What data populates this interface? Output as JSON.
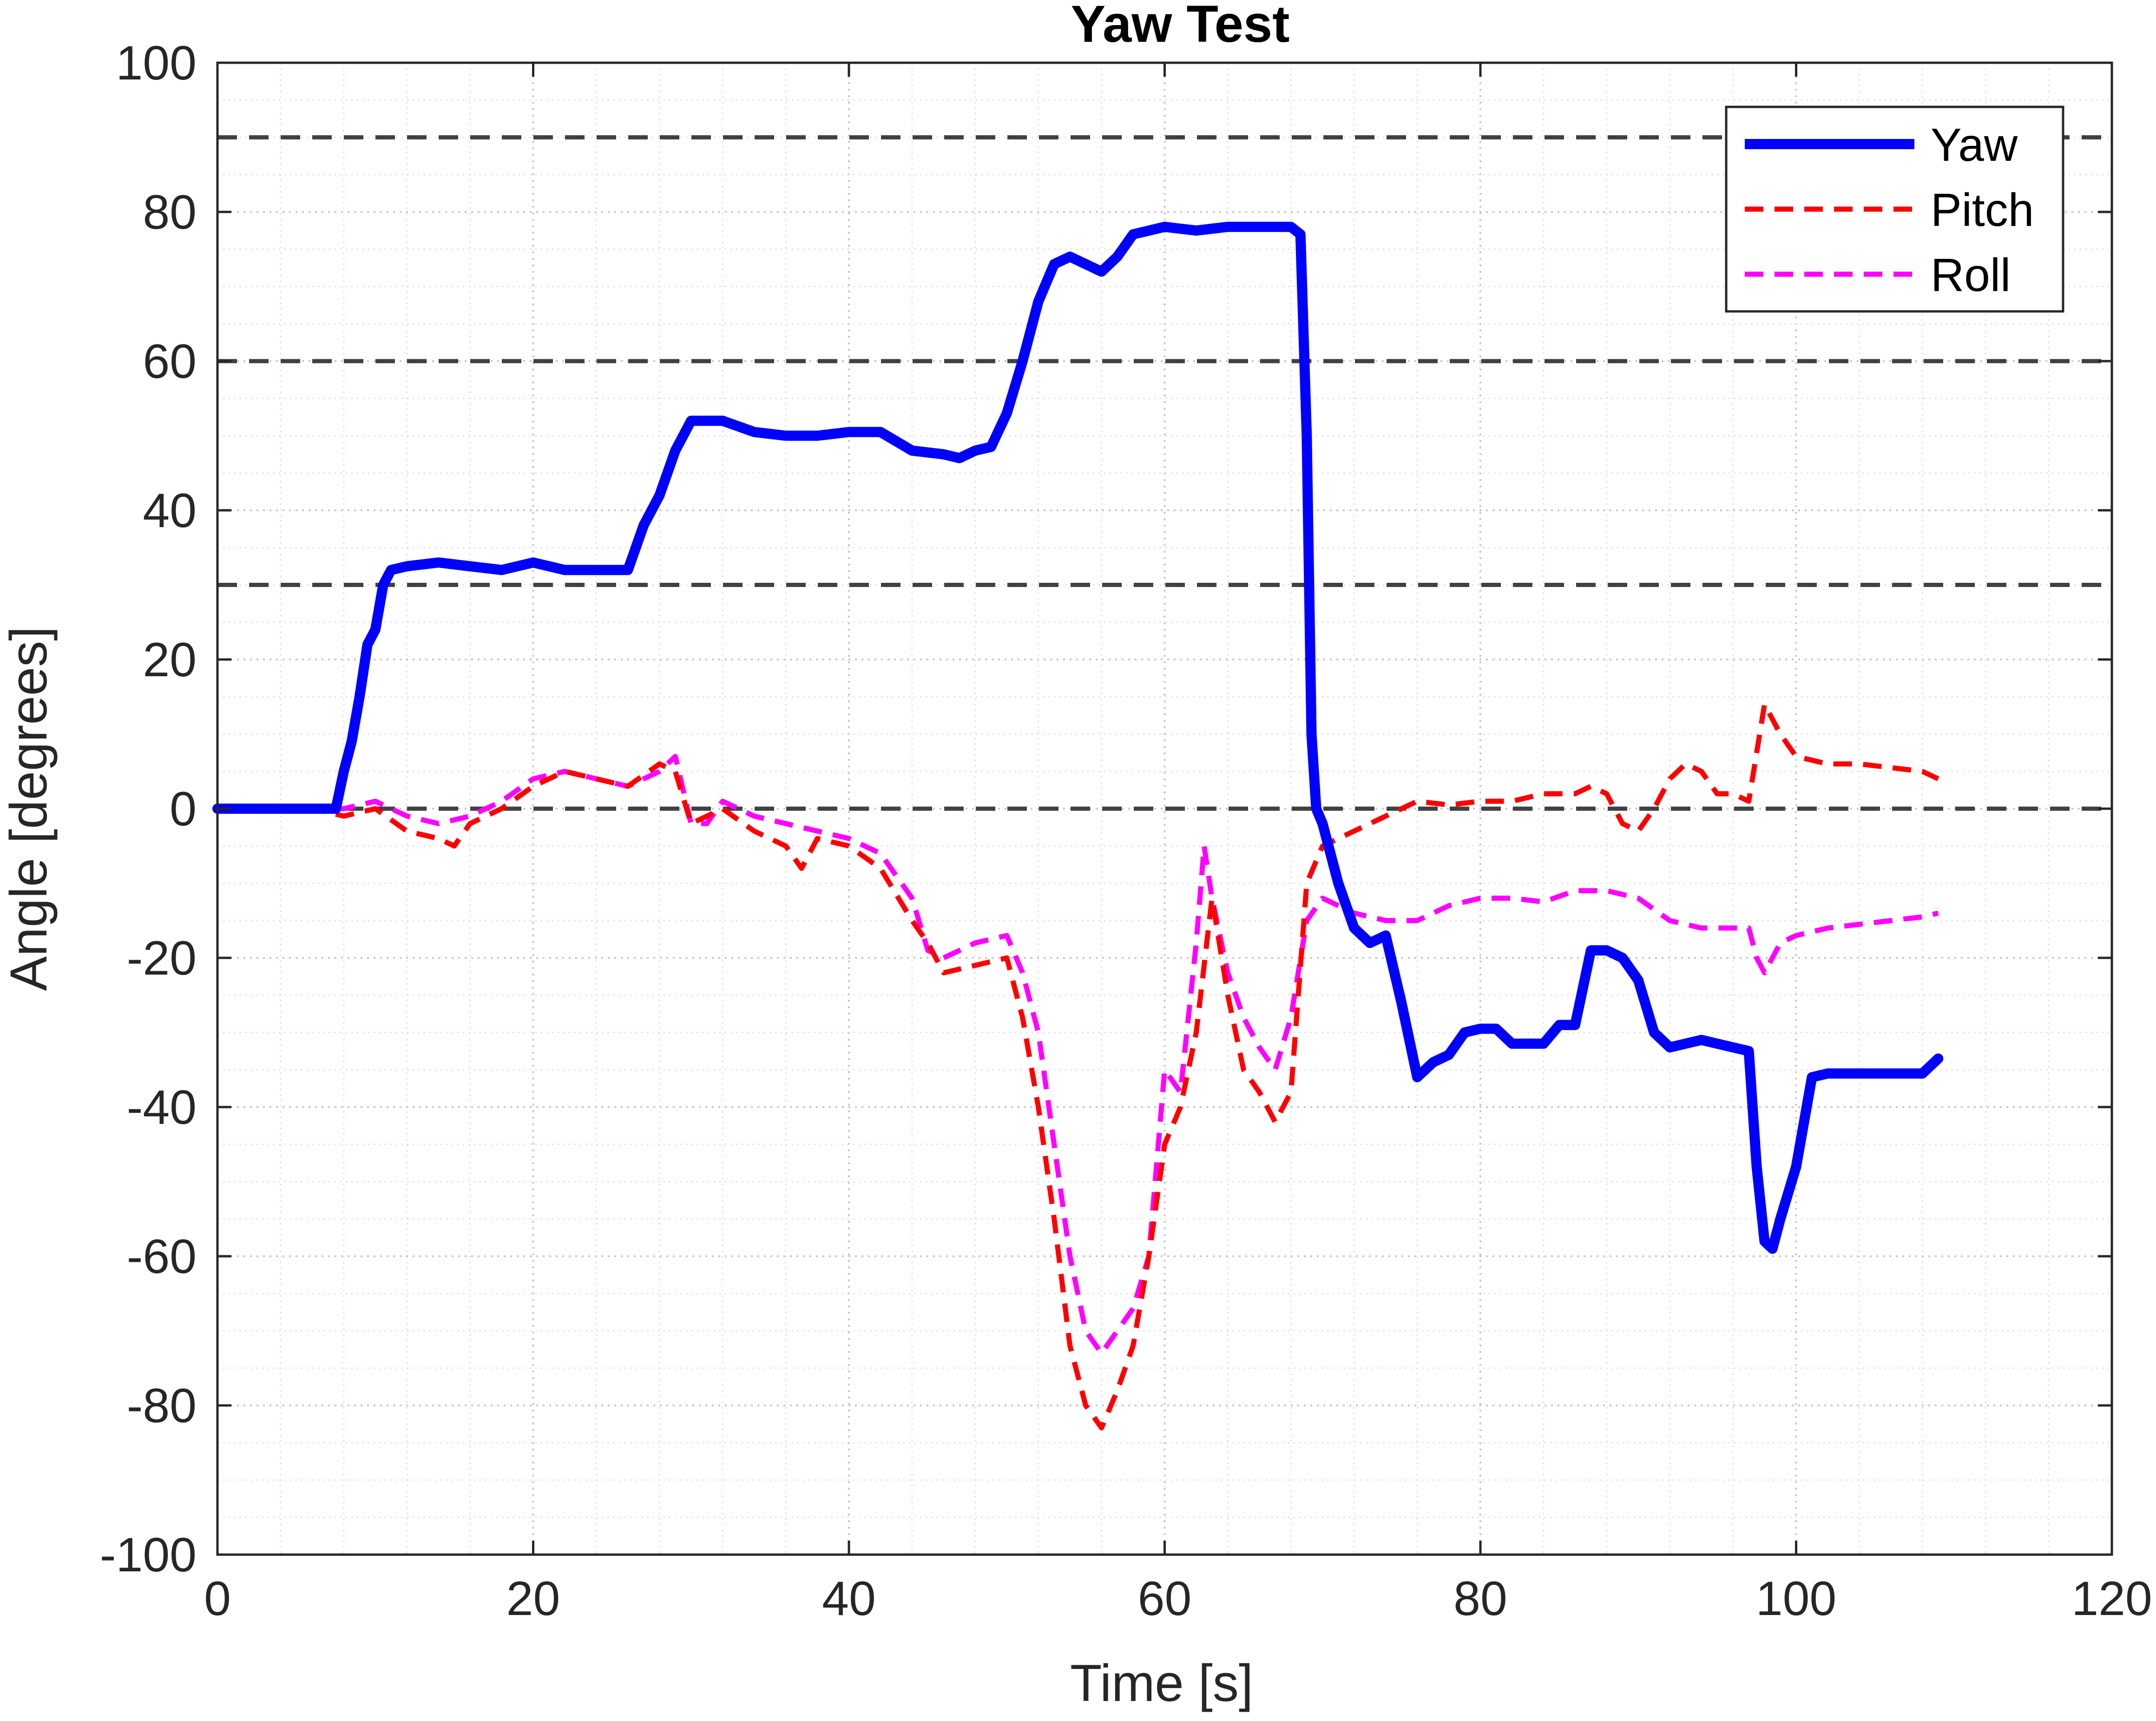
{
  "chart_data": {
    "type": "line",
    "title": "Yaw Test",
    "xlabel": "Time [s]",
    "ylabel": "Angle [degrees]",
    "xlim": [
      0,
      120
    ],
    "ylim": [
      -100,
      100
    ],
    "xticks": [
      0,
      20,
      40,
      60,
      80,
      100,
      120
    ],
    "yticks": [
      100,
      80,
      60,
      40,
      20,
      0,
      -20,
      -40,
      -60,
      -80,
      -100
    ],
    "xtick_labels": [
      "0",
      "20",
      "40",
      "60",
      "80",
      "100",
      "120"
    ],
    "ytick_labels": [
      "100",
      "80",
      "60",
      "40",
      "20",
      "0",
      "-20",
      "-40",
      "-60",
      "-80",
      "-100"
    ],
    "grid": "major and minor (dotted)",
    "reference_lines": [
      90,
      60,
      30,
      0
    ],
    "legend": {
      "position": "top-right",
      "entries": [
        "Yaw",
        "Pitch",
        "Roll"
      ]
    },
    "series": [
      {
        "name": "Yaw",
        "color": "#0000ff",
        "style": "solid",
        "x": [
          0,
          7.5,
          8,
          8.5,
          9,
          9.5,
          10,
          10.5,
          11,
          12,
          14,
          16,
          18,
          20,
          22,
          24,
          26,
          27,
          28,
          29,
          30,
          31,
          32,
          34,
          36,
          38,
          40,
          42,
          44,
          46,
          47,
          48,
          49,
          50,
          51,
          52,
          53,
          54,
          55,
          56,
          57,
          58,
          60,
          62,
          64,
          66,
          68,
          68.6,
          69,
          69.3,
          69.6,
          70,
          71,
          72,
          73,
          74,
          75,
          76,
          77,
          78,
          79,
          80,
          81,
          82,
          83,
          84,
          85,
          86,
          87,
          88,
          89,
          90,
          91,
          92,
          94,
          96,
          97,
          97.5,
          98,
          98.5,
          99,
          100,
          101,
          102,
          104,
          106,
          108,
          109
        ],
        "y": [
          0,
          0,
          5,
          9,
          15,
          22,
          24,
          30,
          32,
          32.5,
          33,
          32.5,
          32,
          33,
          32,
          32,
          32,
          38,
          42,
          48,
          52,
          52,
          52,
          50.5,
          50,
          50,
          50.5,
          50.5,
          48,
          47.5,
          47,
          48,
          48.5,
          53,
          60,
          68,
          73,
          74,
          73,
          72,
          74,
          77,
          78,
          77.5,
          78,
          78,
          78,
          77,
          50,
          10,
          0,
          -2,
          -10,
          -16,
          -18,
          -17,
          -26,
          -36,
          -34,
          -33,
          -30,
          -29.5,
          -29.5,
          -31.5,
          -31.5,
          -31.5,
          -29,
          -29,
          -19,
          -19,
          -20,
          -23,
          -30,
          -32,
          -31,
          -32,
          -32.5,
          -48,
          -58,
          -59,
          -55,
          -48,
          -36,
          -35.5,
          -35.5,
          -35.5,
          -35.5,
          -33.5
        ]
      },
      {
        "name": "Pitch",
        "color": "#ff0000",
        "style": "dashed",
        "x": [
          0,
          6,
          8,
          10,
          12,
          14,
          15,
          16,
          18,
          20,
          22,
          24,
          26,
          28,
          29,
          30,
          32,
          34,
          36,
          37,
          38,
          40,
          42,
          44,
          45,
          46,
          48,
          50,
          51,
          52,
          53,
          54,
          55,
          56,
          57,
          58,
          59,
          60,
          61,
          62,
          63,
          64,
          65,
          66,
          67,
          68,
          69,
          70,
          72,
          74,
          76,
          78,
          80,
          82,
          84,
          86,
          87,
          88,
          89,
          90,
          91,
          92,
          93,
          94,
          95,
          96,
          97,
          98,
          99,
          100,
          102,
          104,
          106,
          108,
          109
        ],
        "y": [
          0,
          0,
          -1,
          0,
          -3,
          -4,
          -5,
          -2,
          0,
          3,
          5,
          4,
          3,
          6,
          5,
          -2,
          0,
          -3,
          -5,
          -8,
          -4,
          -5,
          -8,
          -15,
          -18,
          -22,
          -21,
          -20,
          -28,
          -40,
          -55,
          -72,
          -80,
          -83,
          -78,
          -72,
          -60,
          -45,
          -40,
          -30,
          -12,
          -25,
          -35,
          -38,
          -42,
          -38,
          -10,
          -5,
          -3,
          -1,
          1,
          0.5,
          1,
          1,
          2,
          2,
          3,
          2,
          -2,
          -3,
          0,
          4,
          6,
          5,
          2,
          2,
          1,
          14,
          10,
          7,
          6,
          6,
          5.5,
          5,
          4
        ]
      },
      {
        "name": "Roll",
        "color": "#ff00ff",
        "style": "dashed",
        "x": [
          0,
          6,
          8,
          10,
          12,
          14,
          16,
          18,
          20,
          22,
          24,
          26,
          28,
          29,
          30,
          31,
          32,
          34,
          36,
          38,
          40,
          42,
          44,
          45,
          46,
          48,
          50,
          51,
          52,
          53,
          54,
          55,
          56,
          57,
          58,
          59,
          60,
          61,
          62,
          62.5,
          63,
          64,
          65,
          66,
          67,
          68,
          69,
          70,
          72,
          74,
          76,
          78,
          80,
          82,
          84,
          86,
          88,
          90,
          92,
          94,
          96,
          97,
          97.5,
          98,
          99,
          100,
          102,
          104,
          106,
          108,
          109
        ],
        "y": [
          0,
          0,
          0,
          1,
          -1,
          -2,
          -1,
          1,
          4,
          5,
          4,
          3,
          5,
          7,
          -2,
          -2,
          1,
          -1,
          -2,
          -3,
          -4,
          -6,
          -12,
          -19,
          -20,
          -18,
          -17,
          -22,
          -30,
          -45,
          -60,
          -70,
          -73,
          -70,
          -67,
          -60,
          -35,
          -38,
          -18,
          -5,
          -12,
          -22,
          -28,
          -32,
          -35,
          -28,
          -15,
          -12,
          -14,
          -15,
          -15,
          -13,
          -12,
          -12,
          -12.5,
          -11,
          -11,
          -12,
          -15,
          -16,
          -16,
          -16,
          -20,
          -22,
          -18,
          -17,
          -16,
          -15.5,
          -15,
          -14.5,
          -14
        ]
      }
    ]
  }
}
